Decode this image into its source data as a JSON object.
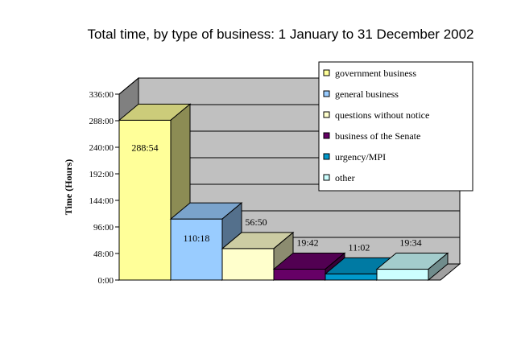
{
  "chart_data": {
    "type": "bar",
    "title": "Total time, by type of business: 1 January to 31 December 2002",
    "ylabel": "Time (Hours)",
    "xlabel": "",
    "y_tick_labels": [
      "0:00",
      "48:00",
      "96:00",
      "144:00",
      "192:00",
      "240:00",
      "288:00",
      "336:00"
    ],
    "ylim_hours": [
      0,
      336
    ],
    "grid": true,
    "legend_position": "top-right",
    "series": [
      {
        "name": "government business",
        "label": "288:54",
        "value_hours": 288.9,
        "color": "#FFFF99"
      },
      {
        "name": "general business",
        "label": "110:18",
        "value_hours": 110.3,
        "color": "#99CCFF"
      },
      {
        "name": "questions without notice",
        "label": "56:50",
        "value_hours": 56.83,
        "color": "#FFFFCC"
      },
      {
        "name": "business of the Senate",
        "label": "19:42",
        "value_hours": 19.7,
        "color": "#660066"
      },
      {
        "name": "urgency/MPI",
        "label": "11:02",
        "value_hours": 11.03,
        "color": "#0099CC"
      },
      {
        "name": "other",
        "label": "19:34",
        "value_hours": 19.57,
        "color": "#CCFFFF"
      }
    ]
  }
}
